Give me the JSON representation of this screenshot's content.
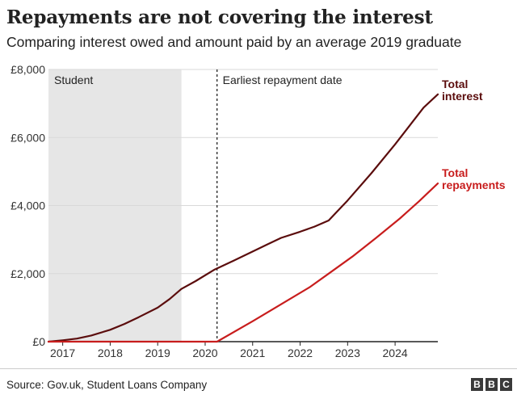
{
  "header": {
    "title": "Repayments are not covering the interest",
    "subtitle": "Comparing interest owed and amount paid by an average 2019 graduate"
  },
  "footer": {
    "source": "Source: Gov.uk, Student Loans Company",
    "logo_letters": [
      "B",
      "B",
      "C"
    ]
  },
  "chart_data": {
    "type": "line",
    "title": "Repayments are not covering the interest",
    "subtitle": "Comparing interest owed and amount paid by an average 2019 graduate",
    "xlim": [
      2016.7,
      2024.9
    ],
    "ylim": [
      0,
      8000
    ],
    "y_ticks": [
      0,
      2000,
      4000,
      6000,
      8000
    ],
    "y_tick_labels": [
      "£0",
      "£2,000",
      "£4,000",
      "£6,000",
      "£8,000"
    ],
    "x_ticks": [
      2017,
      2018,
      2019,
      2020,
      2021,
      2022,
      2023,
      2024
    ],
    "x_tick_labels": [
      "2017",
      "2018",
      "2019",
      "2020",
      "2021",
      "2022",
      "2023",
      "2024"
    ],
    "grid": "horizontal",
    "annotations": [
      {
        "type": "shaded_region",
        "label": "Student",
        "x_start": 2016.7,
        "x_end": 2019.5,
        "color": "#e6e6e6"
      },
      {
        "type": "vertical_dashed_line",
        "label": "Earliest repayment date",
        "x": 2020.25
      }
    ],
    "series": [
      {
        "name": "Total interest",
        "color": "#5b0d0d",
        "points": [
          [
            2016.7,
            0
          ],
          [
            2017.0,
            40
          ],
          [
            2017.3,
            90
          ],
          [
            2017.6,
            180
          ],
          [
            2018.0,
            350
          ],
          [
            2018.3,
            520
          ],
          [
            2018.6,
            720
          ],
          [
            2019.0,
            1000
          ],
          [
            2019.25,
            1250
          ],
          [
            2019.5,
            1550
          ],
          [
            2019.8,
            1780
          ],
          [
            2020.2,
            2120
          ],
          [
            2020.6,
            2380
          ],
          [
            2021.0,
            2650
          ],
          [
            2021.3,
            2850
          ],
          [
            2021.6,
            3050
          ],
          [
            2022.0,
            3230
          ],
          [
            2022.3,
            3380
          ],
          [
            2022.6,
            3560
          ],
          [
            2023.0,
            4150
          ],
          [
            2023.5,
            4950
          ],
          [
            2024.0,
            5800
          ],
          [
            2024.6,
            6880
          ],
          [
            2024.9,
            7270
          ]
        ]
      },
      {
        "name": "Total repayments",
        "color": "#c81d1d",
        "points": [
          [
            2016.7,
            0
          ],
          [
            2020.25,
            0
          ],
          [
            2021.0,
            600
          ],
          [
            2021.6,
            1100
          ],
          [
            2022.2,
            1600
          ],
          [
            2022.6,
            2000
          ],
          [
            2023.1,
            2500
          ],
          [
            2023.6,
            3050
          ],
          [
            2024.1,
            3620
          ],
          [
            2024.5,
            4120
          ],
          [
            2024.9,
            4650
          ]
        ]
      }
    ]
  }
}
